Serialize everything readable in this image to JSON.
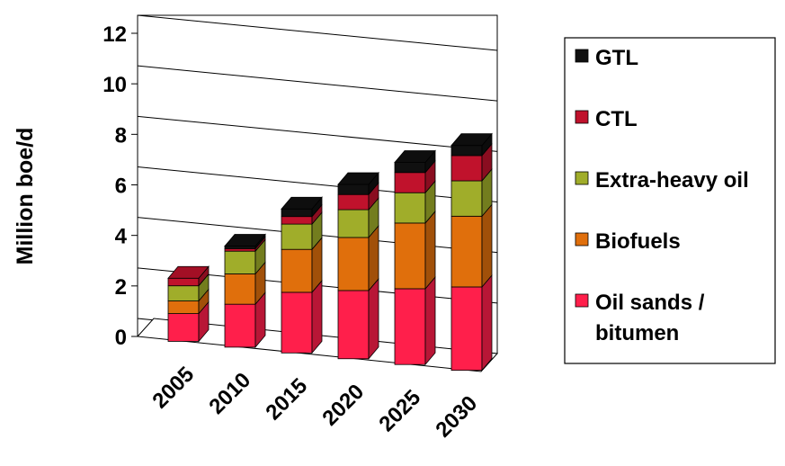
{
  "chart_data": {
    "type": "bar",
    "stacked": true,
    "three_d": true,
    "categories": [
      "2005",
      "2010",
      "2015",
      "2020",
      "2025",
      "2030"
    ],
    "ylabel": "Million boe/d",
    "xlabel": "",
    "ylim": [
      0,
      12
    ],
    "yticks": [
      "0",
      "2",
      "4",
      "6",
      "8",
      "10",
      "12"
    ],
    "grid": true,
    "legend_position": "right",
    "series": [
      {
        "name": "Oil sands / bitumen",
        "color": "#ff1f4b",
        "values": [
          1.1,
          1.7,
          2.4,
          2.7,
          3.0,
          3.3
        ]
      },
      {
        "name": "Biofuels",
        "color": "#e06f0c",
        "values": [
          0.5,
          1.2,
          1.7,
          2.1,
          2.6,
          2.8
        ]
      },
      {
        "name": "Extra-heavy oil",
        "color": "#a0ad2a",
        "values": [
          0.6,
          0.9,
          1.0,
          1.1,
          1.2,
          1.4
        ]
      },
      {
        "name": "CTL",
        "color": "#c0122c",
        "values": [
          0.3,
          0.1,
          0.3,
          0.6,
          0.8,
          1.0
        ]
      },
      {
        "name": "GTL",
        "color": "#101010",
        "values": [
          0.0,
          0.1,
          0.3,
          0.4,
          0.4,
          0.4
        ]
      }
    ]
  }
}
